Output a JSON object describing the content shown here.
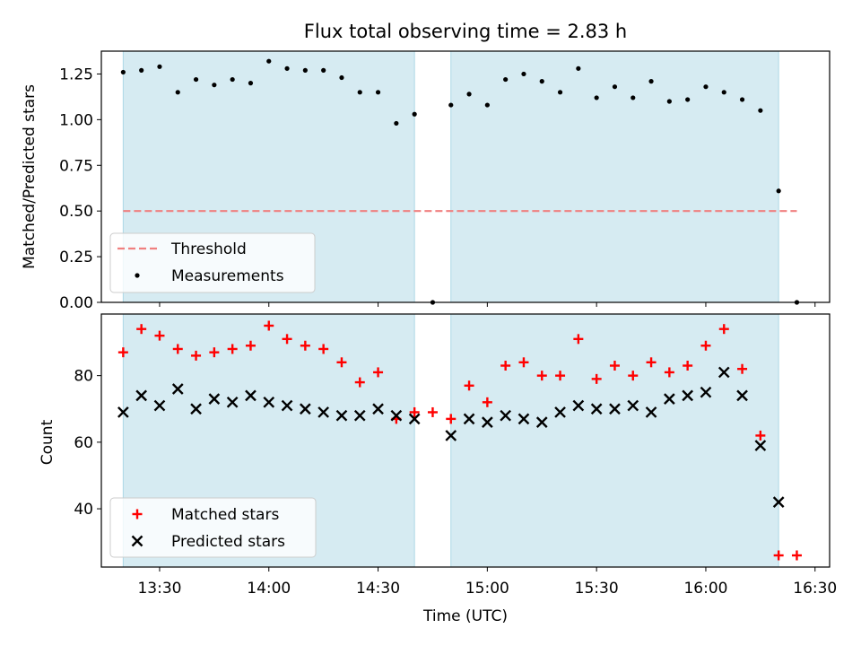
{
  "colors": {
    "band": "#add8e6",
    "threshold": "#f08080",
    "matched": "#ff0000",
    "predicted": "#000000",
    "measurement": "#000000"
  },
  "chart_data": [
    {
      "type": "scatter",
      "title": "Flux total observing time = 2.83 h",
      "xlabel": "",
      "ylabel": "Matched/Predicted stars",
      "xlim": [
        "13:14",
        "16:34"
      ],
      "ylim": [
        0,
        1.375
      ],
      "yticks": [
        0.0,
        0.25,
        0.5,
        0.75,
        1.0,
        1.25
      ],
      "ytick_labels": [
        "0.00",
        "0.25",
        "0.50",
        "0.75",
        "1.00",
        "1.25"
      ],
      "bands": [
        {
          "start": "13:20",
          "end": "14:40"
        },
        {
          "start": "14:50",
          "end": "16:20"
        }
      ],
      "threshold": {
        "label": "Threshold",
        "value": 0.5,
        "from": "13:20",
        "to": "16:25"
      },
      "legend_location": "lower-left",
      "series": [
        {
          "name": "Measurements",
          "marker": "dot",
          "x": [
            "13:20",
            "13:25",
            "13:30",
            "13:35",
            "13:40",
            "13:45",
            "13:50",
            "13:55",
            "14:00",
            "14:05",
            "14:10",
            "14:15",
            "14:20",
            "14:25",
            "14:30",
            "14:35",
            "14:40",
            "14:45",
            "14:50",
            "14:55",
            "15:00",
            "15:05",
            "15:10",
            "15:15",
            "15:20",
            "15:25",
            "15:30",
            "15:35",
            "15:40",
            "15:45",
            "15:50",
            "15:55",
            "16:00",
            "16:05",
            "16:10",
            "16:15",
            "16:20",
            "16:25"
          ],
          "y": [
            1.26,
            1.27,
            1.29,
            1.15,
            1.22,
            1.19,
            1.22,
            1.2,
            1.32,
            1.28,
            1.27,
            1.27,
            1.23,
            1.15,
            1.15,
            0.98,
            1.03,
            0.0,
            1.08,
            1.14,
            1.08,
            1.22,
            1.25,
            1.21,
            1.15,
            1.28,
            1.12,
            1.18,
            1.12,
            1.21,
            1.1,
            1.11,
            1.18,
            1.15,
            1.11,
            1.05,
            0.61,
            0.0
          ]
        }
      ]
    },
    {
      "type": "scatter",
      "title": "",
      "xlabel": "Time (UTC)",
      "ylabel": "Count",
      "xlim": [
        "13:14",
        "16:34"
      ],
      "ylim": [
        22.5,
        98.5
      ],
      "yticks": [
        40,
        60,
        80
      ],
      "ytick_labels": [
        "40",
        "60",
        "80"
      ],
      "xticks": [
        "13:30",
        "14:00",
        "14:30",
        "15:00",
        "15:30",
        "16:00",
        "16:30"
      ],
      "bands": [
        {
          "start": "13:20",
          "end": "14:40"
        },
        {
          "start": "14:50",
          "end": "16:20"
        }
      ],
      "legend_location": "lower-left",
      "x": [
        "13:20",
        "13:25",
        "13:30",
        "13:35",
        "13:40",
        "13:45",
        "13:50",
        "13:55",
        "14:00",
        "14:05",
        "14:10",
        "14:15",
        "14:20",
        "14:25",
        "14:30",
        "14:35",
        "14:40",
        "14:45",
        "14:50",
        "14:55",
        "15:00",
        "15:05",
        "15:10",
        "15:15",
        "15:20",
        "15:25",
        "15:30",
        "15:35",
        "15:40",
        "15:45",
        "15:50",
        "15:55",
        "16:00",
        "16:05",
        "16:10",
        "16:15",
        "16:20",
        "16:25"
      ],
      "series": [
        {
          "name": "Matched stars",
          "marker": "plus",
          "values": [
            87,
            94,
            92,
            88,
            86,
            87,
            88,
            89,
            95,
            91,
            89,
            88,
            84,
            78,
            81,
            67,
            69,
            69,
            67,
            77,
            72,
            83,
            84,
            80,
            80,
            91,
            79,
            83,
            80,
            84,
            81,
            83,
            89,
            94,
            82,
            62,
            26,
            26
          ]
        },
        {
          "name": "Predicted stars",
          "marker": "x",
          "values": [
            69,
            74,
            71,
            76,
            70,
            73,
            72,
            74,
            72,
            71,
            70,
            69,
            68,
            68,
            70,
            68,
            67,
            null,
            62,
            67,
            66,
            68,
            67,
            66,
            69,
            71,
            70,
            70,
            71,
            69,
            73,
            74,
            75,
            81,
            74,
            59,
            42,
            null
          ]
        }
      ]
    }
  ]
}
